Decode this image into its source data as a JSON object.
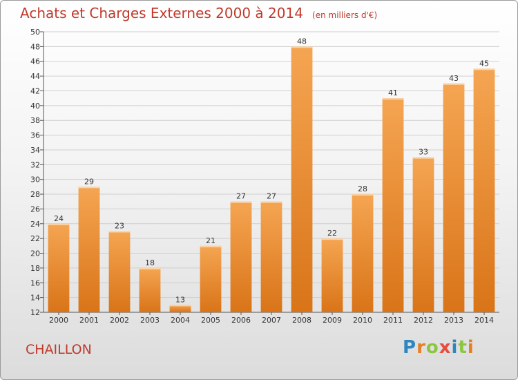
{
  "header": {
    "title": "Achats et Charges Externes 2000 à 2014",
    "subtitle": "(en milliers d'€)"
  },
  "commune": "CHAILLON",
  "logo": {
    "text": "Proxiti",
    "letters": [
      {
        "char": "P",
        "color": "#2e86c1"
      },
      {
        "char": "r",
        "color": "#e67e22"
      },
      {
        "char": "o",
        "color": "#8cc63f"
      },
      {
        "char": "x",
        "color": "#e74c3c"
      },
      {
        "char": "i",
        "color": "#2e86c1"
      },
      {
        "char": "t",
        "color": "#8cc63f"
      },
      {
        "char": "i",
        "color": "#e67e22"
      }
    ]
  },
  "colors": {
    "bar_top": "#f5a552",
    "bar_bottom": "#d97418",
    "title": "#c0392b",
    "grid": "#cfcfcf"
  },
  "chart_data": {
    "type": "bar",
    "title": "Achats et Charges Externes 2000 à 2014",
    "subtitle": "(en milliers d'€)",
    "xlabel": "",
    "ylabel": "",
    "categories": [
      "2000",
      "2001",
      "2002",
      "2003",
      "2004",
      "2005",
      "2006",
      "2007",
      "2008",
      "2009",
      "2010",
      "2011",
      "2012",
      "2013",
      "2014"
    ],
    "values": [
      24,
      29,
      23,
      18,
      13,
      21,
      27,
      27,
      48,
      22,
      28,
      41,
      33,
      43,
      45
    ],
    "ylim": [
      12,
      50
    ],
    "yticks": [
      12,
      14,
      16,
      18,
      20,
      22,
      24,
      26,
      28,
      30,
      32,
      34,
      36,
      38,
      40,
      42,
      44,
      46,
      48,
      50
    ],
    "grid": true,
    "legend": "none"
  }
}
